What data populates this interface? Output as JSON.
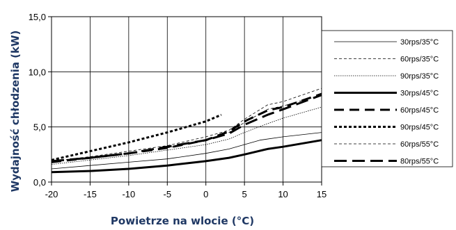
{
  "chart_data": {
    "type": "line",
    "title": "",
    "xlabel": "Powietrze na wlocie (°C)",
    "ylabel": "Wydajność chłodzenia (kW)",
    "xlim": [
      -20,
      15
    ],
    "ylim": [
      0,
      15
    ],
    "xticks": [
      -20,
      -15,
      -10,
      -5,
      0,
      5,
      10,
      15
    ],
    "yticks": [
      0,
      5,
      10,
      15
    ],
    "xtick_labels": [
      "-20",
      "-15",
      "-10",
      "-5",
      "0",
      "5",
      "10",
      "15"
    ],
    "ytick_labels": [
      "0,0",
      "5,0",
      "10,0",
      "15,0"
    ],
    "grid": true,
    "legend_position": "right",
    "series": [
      {
        "name": "30rps/35°C",
        "color": "#000000",
        "style": "thin-solid",
        "x": [
          -20,
          -15,
          -10,
          -5,
          0,
          3,
          7,
          10,
          15
        ],
        "y": [
          1.2,
          1.5,
          1.8,
          2.1,
          2.6,
          3.0,
          3.8,
          4.1,
          4.5
        ]
      },
      {
        "name": "60rps/35°C",
        "color": "#000000",
        "style": "thin-dash",
        "x": [
          -20,
          -15,
          -10,
          -5,
          0,
          3,
          5,
          8,
          10,
          15
        ],
        "y": [
          1.9,
          2.3,
          2.8,
          3.3,
          4.1,
          4.7,
          5.7,
          7.0,
          7.3,
          8.5
        ]
      },
      {
        "name": "90rps/35°C",
        "color": "#000000",
        "style": "thin-dot",
        "x": [
          -20,
          -15,
          -10,
          -5,
          0,
          3,
          5,
          8,
          10,
          15
        ],
        "y": [
          1.6,
          2.0,
          2.4,
          2.9,
          3.4,
          3.9,
          4.5,
          5.3,
          5.8,
          6.8
        ]
      },
      {
        "name": "30rps/45°C",
        "color": "#000000",
        "style": "thick-solid",
        "x": [
          -20,
          -15,
          -10,
          -5,
          0,
          3,
          5,
          8,
          10,
          15
        ],
        "y": [
          0.9,
          1.0,
          1.2,
          1.5,
          1.9,
          2.2,
          2.5,
          3.0,
          3.2,
          3.8
        ]
      },
      {
        "name": "60rps/45°C",
        "color": "#000000",
        "style": "thick-dash",
        "x": [
          -20,
          -15,
          -10,
          -5,
          0,
          3,
          5,
          8,
          10,
          15
        ],
        "y": [
          1.8,
          2.2,
          2.6,
          3.1,
          3.8,
          4.6,
          5.5,
          6.5,
          6.8,
          8.0
        ]
      },
      {
        "name": "90rps/45°C",
        "color": "#000000",
        "style": "thick-dot",
        "x": [
          -20,
          -15,
          -10,
          -5,
          0,
          2
        ],
        "y": [
          2.0,
          2.8,
          3.6,
          4.5,
          5.5,
          6.1
        ]
      },
      {
        "name": "60rps/55°C",
        "color": "#000000",
        "style": "thin-dash",
        "x": [
          -5,
          0,
          3,
          5,
          8,
          10,
          15
        ],
        "y": [
          3.1,
          3.8,
          4.5,
          5.4,
          6.6,
          6.9,
          7.9
        ]
      },
      {
        "name": "80rps/55°C",
        "color": "#000000",
        "style": "thick-longdash",
        "x": [
          -20,
          -15,
          -10,
          -5,
          0,
          3,
          5,
          8,
          10,
          15
        ],
        "y": [
          1.9,
          2.2,
          2.6,
          3.2,
          3.8,
          4.4,
          5.2,
          6.1,
          6.6,
          7.9
        ]
      }
    ]
  }
}
